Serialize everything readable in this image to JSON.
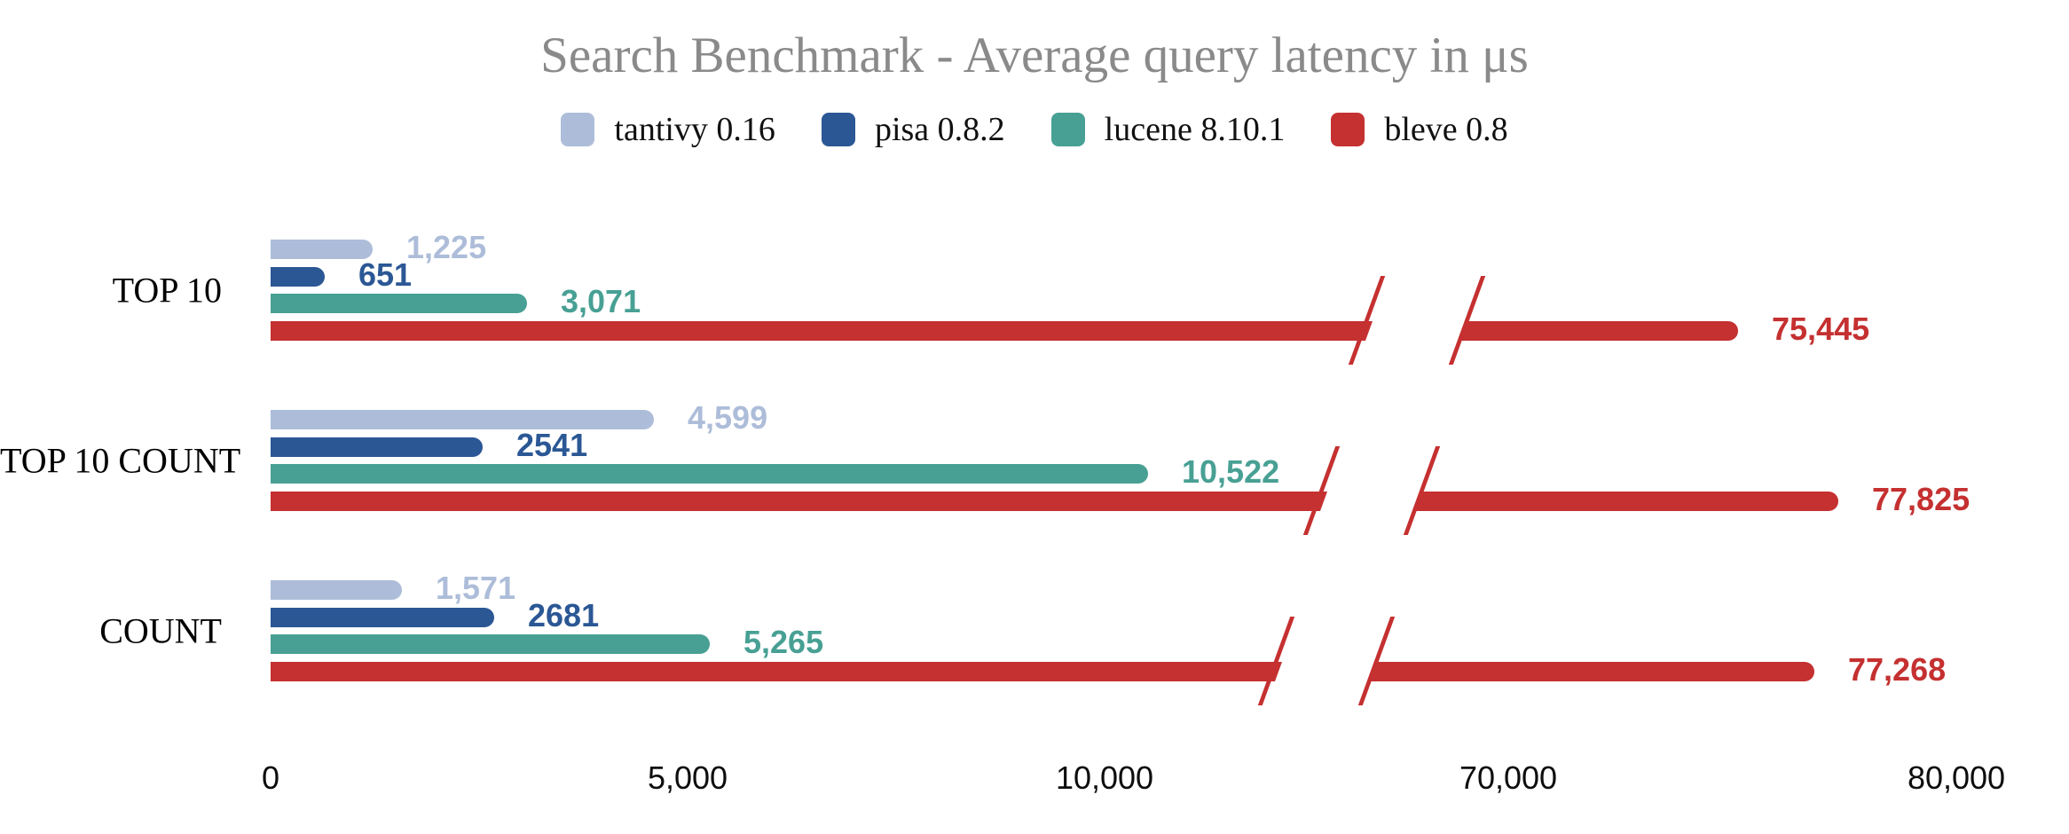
{
  "chart_data": {
    "type": "bar",
    "orientation": "horizontal",
    "title": "Search Benchmark - Average query latency in μs",
    "title_color": "#8a8a8a",
    "background": "#ffffff",
    "grid": false,
    "legend_position": "top",
    "unit": "μs",
    "categories": [
      "TOP 10",
      "TOP 10 COUNT",
      "COUNT"
    ],
    "series": [
      {
        "name": "tantivy 0.16",
        "color": "#adbdd9",
        "values": [
          1225,
          4599,
          1571
        ],
        "value_labels": [
          "1,225",
          "4,599",
          "1,571"
        ]
      },
      {
        "name": "pisa 0.8.2",
        "color": "#2b5795",
        "values": [
          651,
          2541,
          2681
        ],
        "value_labels": [
          "651",
          "2541",
          "2681"
        ]
      },
      {
        "name": "lucene 8.10.1",
        "color": "#48a094",
        "values": [
          3071,
          10522,
          5265
        ],
        "value_labels": [
          "3,071",
          "10,522",
          "5,265"
        ]
      },
      {
        "name": "bleve 0.8",
        "color": "#c53030",
        "values": [
          75445,
          77825,
          77268
        ],
        "value_labels": [
          "75,445",
          "77,825",
          "77,268"
        ]
      }
    ],
    "x_axis": {
      "ticks": [
        {
          "value": 0,
          "label": "0"
        },
        {
          "value": 5000,
          "label": "5,000"
        },
        {
          "value": 10000,
          "label": "10,000"
        },
        {
          "value": 70000,
          "label": "70,000"
        },
        {
          "value": 80000,
          "label": "80,000"
        }
      ],
      "break": {
        "after_value": 10000,
        "resume_value": 70000
      }
    }
  }
}
